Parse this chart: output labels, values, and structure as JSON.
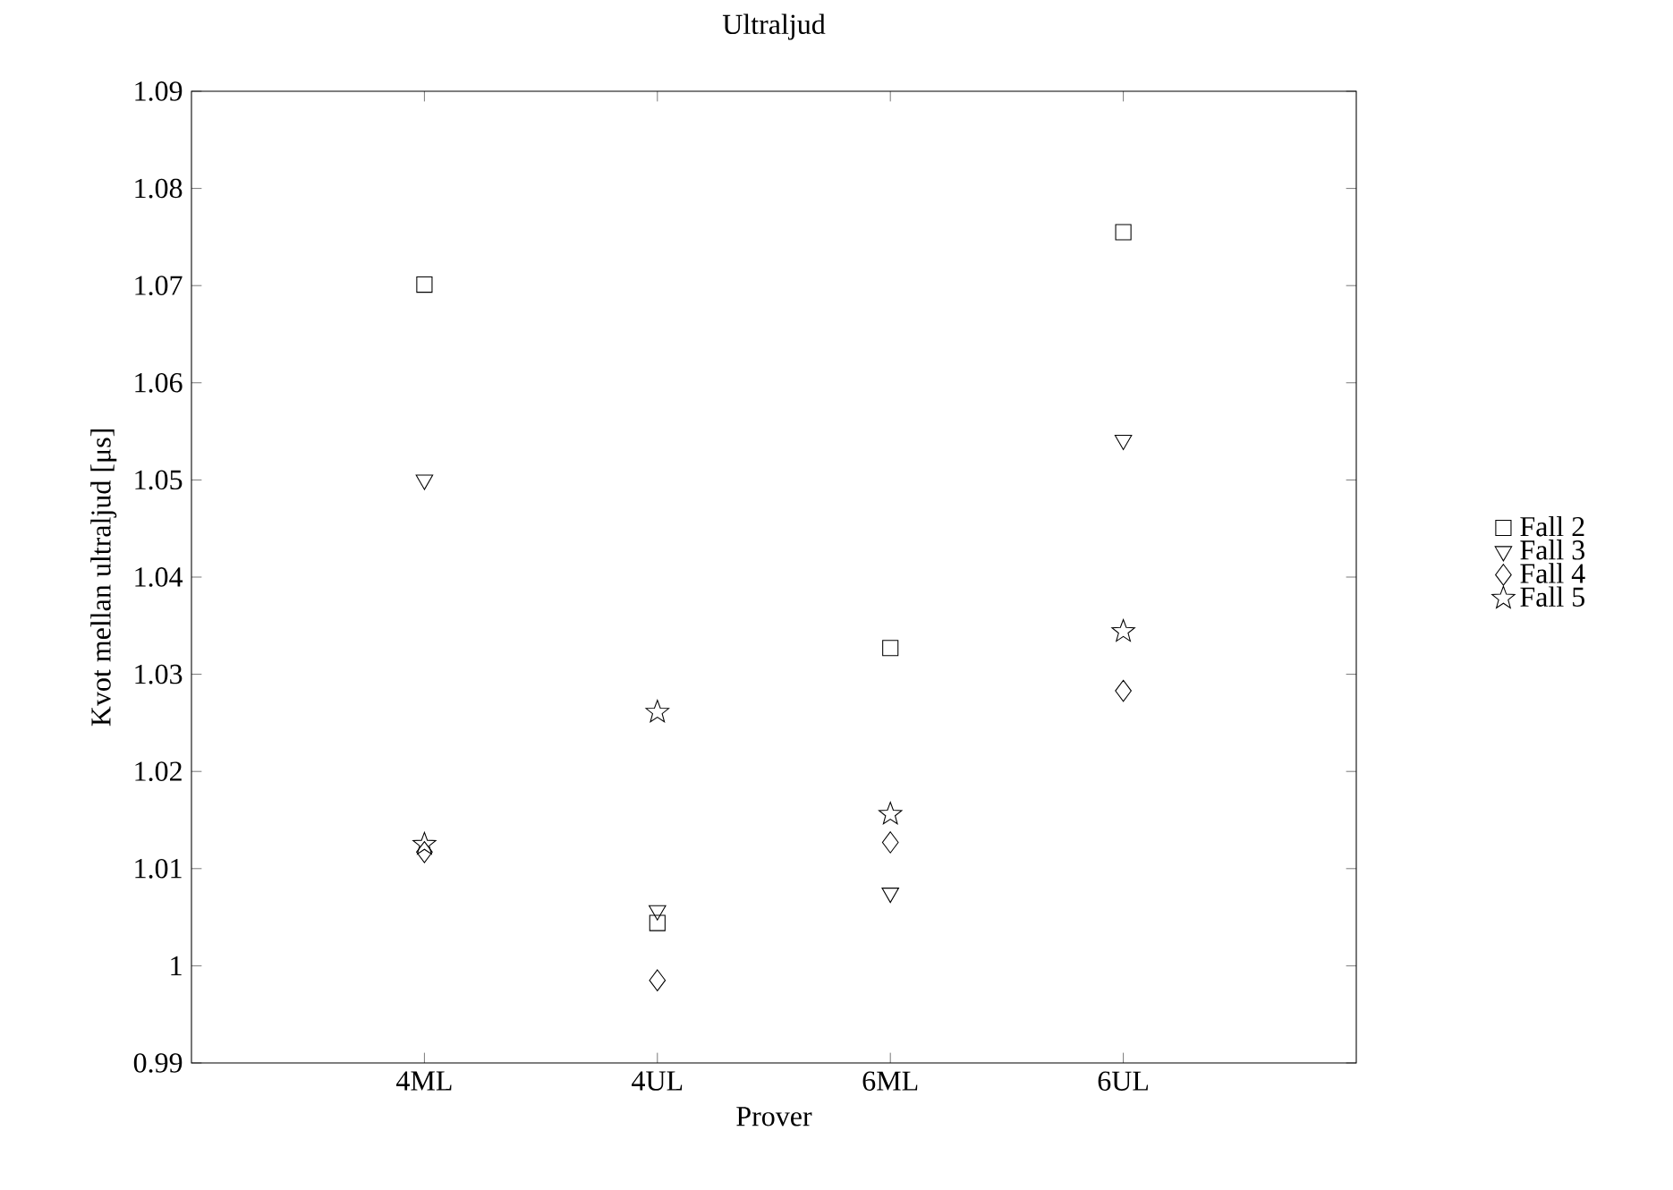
{
  "chart_data": {
    "type": "scatter",
    "title": "Ultraljud",
    "xlabel": "Prover",
    "ylabel": "Kvot mellan ultraljud [μs]",
    "categories": [
      "4ML",
      "4UL",
      "6ML",
      "6UL"
    ],
    "ylim": [
      0.99,
      1.09
    ],
    "yticks": [
      0.99,
      1,
      1.01,
      1.02,
      1.03,
      1.04,
      1.05,
      1.06,
      1.07,
      1.08,
      1.09
    ],
    "legend": "right",
    "grid": false,
    "series": [
      {
        "name": "Fall 2",
        "color": "#000000",
        "marker": "square",
        "values": [
          1.0701,
          1.0044,
          1.0327,
          1.0755
        ]
      },
      {
        "name": "Fall 3",
        "color": "#000000",
        "marker": "triangle",
        "values": [
          1.05,
          1.0057,
          1.0075,
          1.0541
        ]
      },
      {
        "name": "Fall 4",
        "color": "#000000",
        "marker": "diamond",
        "values": [
          1.0117,
          0.9985,
          1.0127,
          1.0283
        ]
      },
      {
        "name": "Fall 5",
        "color": "#000000",
        "marker": "star",
        "values": [
          1.0125,
          1.0261,
          1.0156,
          1.0344
        ]
      }
    ]
  }
}
